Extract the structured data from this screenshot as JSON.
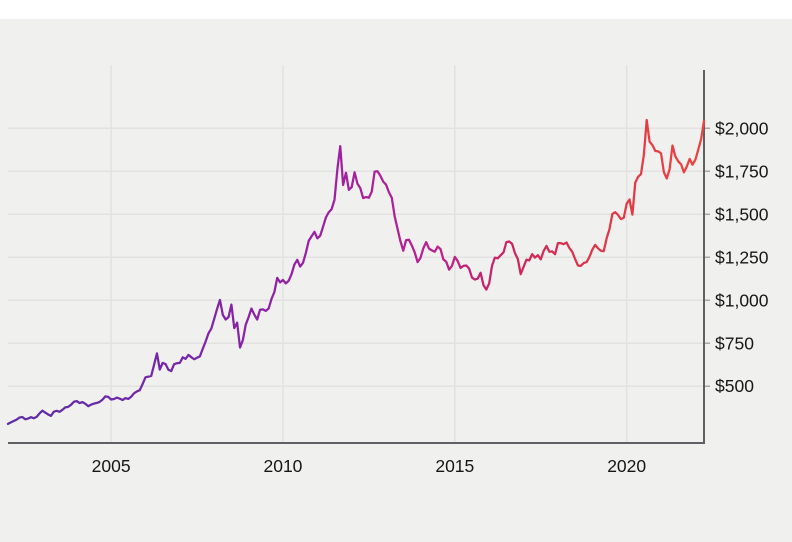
{
  "page": {
    "background": "#ffffff",
    "canvas_background": "#f0f0ef",
    "top_strip_height": 19
  },
  "chart_data": {
    "type": "line",
    "title": "",
    "xlabel": "",
    "ylabel": "",
    "grid": true,
    "legend": false,
    "x_start_year": 2002.0,
    "x_step_years": 0.0833333,
    "x_range": [
      2002.0,
      2022.25
    ],
    "y_range": [
      170,
      2368
    ],
    "x_ticks": [
      {
        "label": "2005",
        "year": 2005
      },
      {
        "label": "2010",
        "year": 2010
      },
      {
        "label": "2015",
        "year": 2015
      },
      {
        "label": "2020",
        "year": 2020
      }
    ],
    "y_ticks": [
      {
        "label": "$500",
        "value": 500
      },
      {
        "label": "$750",
        "value": 750
      },
      {
        "label": "$1,000",
        "value": 1000
      },
      {
        "label": "$1,250",
        "value": 1250
      },
      {
        "label": "$1,500",
        "value": 1500
      },
      {
        "label": "$1,750",
        "value": 1750
      },
      {
        "label": "$2,000",
        "value": 2000
      }
    ],
    "values": [
      281,
      290,
      298,
      306,
      318,
      321,
      308,
      312,
      320,
      314,
      322,
      342,
      358,
      347,
      336,
      328,
      352,
      357,
      351,
      363,
      377,
      380,
      392,
      410,
      414,
      402,
      408,
      398,
      384,
      393,
      399,
      403,
      409,
      422,
      441,
      438,
      423,
      426,
      434,
      428,
      420,
      431,
      426,
      439,
      459,
      470,
      477,
      513,
      552,
      556,
      560,
      625,
      691,
      597,
      636,
      629,
      596,
      588,
      628,
      634,
      636,
      668,
      659,
      682,
      669,
      657,
      666,
      674,
      718,
      760,
      808,
      836,
      892,
      950,
      1002,
      915,
      888,
      902,
      975,
      838,
      870,
      725,
      768,
      858,
      902,
      952,
      916,
      888,
      945,
      947,
      938,
      952,
      1008,
      1048,
      1130,
      1104,
      1118,
      1098,
      1114,
      1152,
      1208,
      1235,
      1196,
      1218,
      1276,
      1346,
      1372,
      1398,
      1360,
      1375,
      1428,
      1482,
      1512,
      1530,
      1585,
      1762,
      1896,
      1670,
      1742,
      1642,
      1658,
      1744,
      1678,
      1652,
      1594,
      1600,
      1596,
      1632,
      1748,
      1750,
      1724,
      1690,
      1672,
      1628,
      1596,
      1488,
      1416,
      1344,
      1288,
      1350,
      1352,
      1318,
      1278,
      1222,
      1246,
      1302,
      1338,
      1300,
      1290,
      1282,
      1312,
      1298,
      1238,
      1224,
      1178,
      1200,
      1252,
      1228,
      1188,
      1200,
      1202,
      1184,
      1132,
      1120,
      1126,
      1160,
      1088,
      1062,
      1098,
      1202,
      1248,
      1244,
      1262,
      1278,
      1338,
      1342,
      1328,
      1274,
      1240,
      1152,
      1194,
      1236,
      1232,
      1268,
      1248,
      1262,
      1238,
      1286,
      1316,
      1282,
      1284,
      1268,
      1332,
      1332,
      1326,
      1336,
      1304,
      1282,
      1240,
      1202,
      1200,
      1216,
      1222,
      1252,
      1294,
      1322,
      1302,
      1288,
      1286,
      1360,
      1414,
      1502,
      1512,
      1496,
      1472,
      1480,
      1562,
      1586,
      1498,
      1684,
      1718,
      1734,
      1846,
      2048,
      1922,
      1902,
      1868,
      1866,
      1854,
      1744,
      1708,
      1762,
      1900,
      1836,
      1808,
      1790,
      1744,
      1778,
      1822,
      1788,
      1818,
      1876,
      1938,
      2044
    ],
    "line_gradient": [
      {
        "offset": 0.0,
        "color": "#5b2ca6"
      },
      {
        "offset": 0.25,
        "color": "#7726a8"
      },
      {
        "offset": 0.47,
        "color": "#9e20a0"
      },
      {
        "offset": 0.61,
        "color": "#b9208f"
      },
      {
        "offset": 0.68,
        "color": "#c52170"
      },
      {
        "offset": 0.76,
        "color": "#d12a56"
      },
      {
        "offset": 0.85,
        "color": "#de3747"
      },
      {
        "offset": 1.0,
        "color": "#ec4340"
      }
    ],
    "line_width": 2.25,
    "grid_color": "#e2e2e2",
    "axis_color": "#606064",
    "tick_mark_color": "#a8a8a8",
    "label_color": "#161616"
  }
}
